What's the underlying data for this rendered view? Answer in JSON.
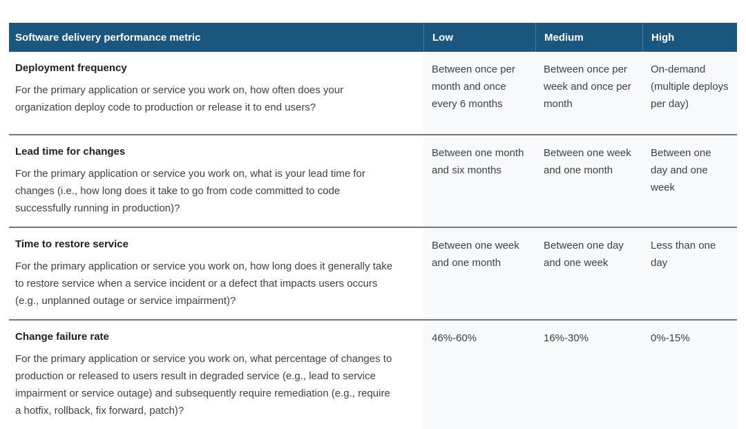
{
  "colors": {
    "header_bg": "#1a567d",
    "header_text": "#ffffff",
    "header_separator": "rgba(255,255,255,0.22)",
    "row_divider": "#757575",
    "value_column_bg": "#f8f9fa",
    "metric_title_text": "#202124",
    "body_text": "#3c4043",
    "page_bg": "#ffffff"
  },
  "table": {
    "headers": [
      "Software delivery performance metric",
      "Low",
      "Medium",
      "High"
    ],
    "rows": [
      {
        "metric": "Deployment frequency",
        "description": "For the primary application or service you work on, how often does your organization deploy code to production or release it to end users?",
        "low": "Between once per month and once every 6 months",
        "medium": "Between once per week and once per month",
        "high": "On-demand (multiple deploys per day)"
      },
      {
        "metric": "Lead time for changes",
        "description": "For the primary application or service you work on, what is your lead time for changes (i.e., how long does it take to go from code committed to code successfully running in production)?",
        "low": "Between one month and six months",
        "medium": "Between one week and one month",
        "high": "Between one day and one week"
      },
      {
        "metric": "Time to restore service",
        "description": "For the primary application or service you work on, how long does it generally take to restore service when a service incident or a defect that impacts users occurs (e.g., unplanned outage or service impairment)?",
        "low": "Between one week and one month",
        "medium": "Between one day and one week",
        "high": "Less than one day"
      },
      {
        "metric": "Change failure rate",
        "description": "For the primary application or service you work on, what percentage of changes to production or released to users result in degraded service (e.g., lead to service impairment or service outage) and subsequently require remediation (e.g., require a hotfix, rollback, fix forward, patch)?",
        "low": "46%-60%",
        "medium": "16%-30%",
        "high": "0%-15%"
      }
    ]
  }
}
